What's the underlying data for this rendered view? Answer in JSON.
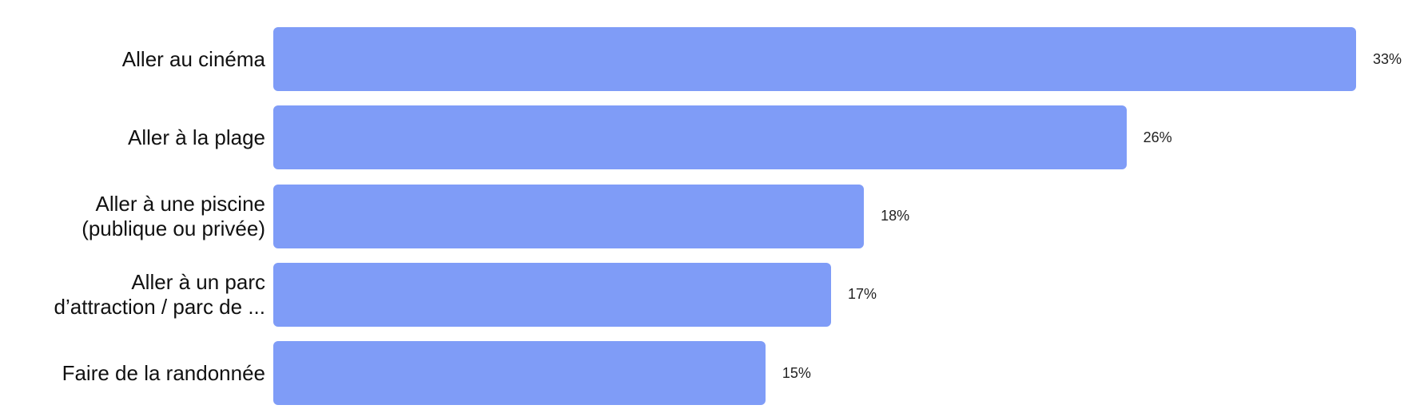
{
  "chart_data": {
    "type": "bar",
    "orientation": "horizontal",
    "categories": [
      "Aller au cinéma",
      "Aller à la plage",
      "Aller à une piscine\n(publique ou privée)",
      "Aller à un parc\nd’attraction / parc de ...",
      "Faire de la randonnée"
    ],
    "values": [
      33,
      26,
      18,
      17,
      15
    ],
    "value_labels": [
      "33%",
      "26%",
      "18%",
      "17%",
      "15%"
    ],
    "color": "#7f9cf7"
  }
}
